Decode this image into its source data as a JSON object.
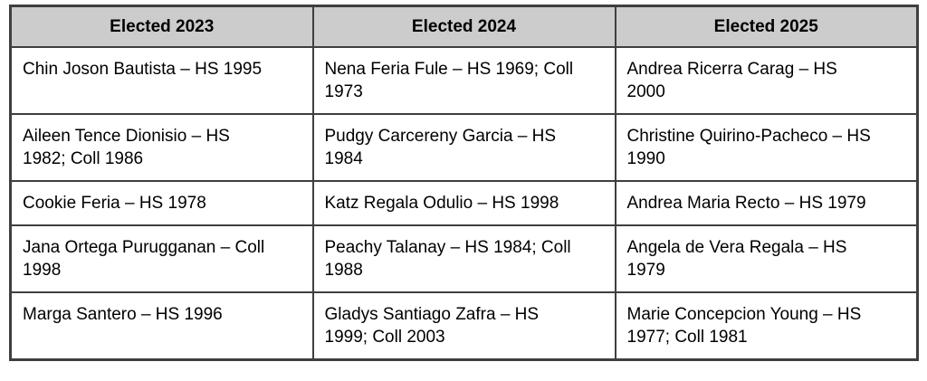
{
  "colors": {
    "page_bg": "#ffffff",
    "header_bg": "#cccccc",
    "border": "#3f3f3f",
    "text": "#000000"
  },
  "table": {
    "headers": [
      "Elected 2023",
      "Elected 2024",
      "Elected 2025"
    ],
    "rows": [
      {
        "cells": [
          "Chin Joson Bautista – HS 1995",
          "Nena Feria Fule – HS 1969; Coll\n1973",
          "Andrea Ricerra Carag – HS\n2000"
        ]
      },
      {
        "cells": [
          "Aileen Tence Dionisio – HS\n1982; Coll 1986",
          "Pudgy Carcereny Garcia – HS\n1984",
          "Christine Quirino-Pacheco – HS\n1990"
        ]
      },
      {
        "cells": [
          "Cookie Feria – HS 1978",
          "Katz Regala Odulio – HS 1998",
          "Andrea Maria Recto – HS 1979"
        ]
      },
      {
        "cells": [
          "Jana Ortega Purugganan – Coll\n1998",
          "Peachy Talanay – HS 1984; Coll\n1988",
          "Angela de Vera Regala – HS\n1979"
        ]
      },
      {
        "cells": [
          "Marga Santero – HS 1996",
          "Gladys Santiago Zafra – HS\n1999; Coll 2003",
          "Marie Concepcion Young – HS\n1977; Coll 1981"
        ]
      }
    ]
  }
}
